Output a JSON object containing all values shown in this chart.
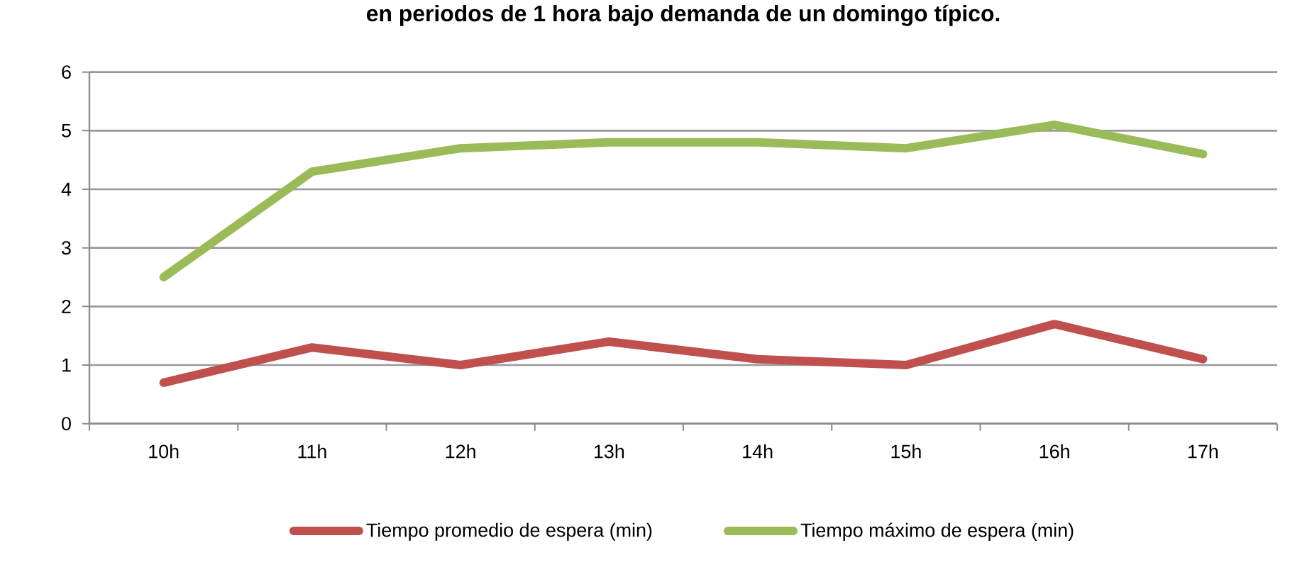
{
  "chart_data": {
    "type": "line",
    "title": "en periodos de 1 hora bajo demanda de un domingo típico.",
    "categories": [
      "10h",
      "11h",
      "12h",
      "13h",
      "14h",
      "15h",
      "16h",
      "17h"
    ],
    "series": [
      {
        "name": "Tiempo promedio de espera (min)",
        "color": "#c0504d",
        "values": [
          0.7,
          1.3,
          1.0,
          1.4,
          1.1,
          1.0,
          1.7,
          1.1
        ]
      },
      {
        "name": "Tiempo máximo de espera (min)",
        "color": "#9bbb59",
        "values": [
          2.5,
          4.3,
          4.7,
          4.8,
          4.8,
          4.7,
          5.1,
          4.6
        ]
      }
    ],
    "ylim": [
      0,
      6
    ],
    "yticks": [
      0,
      1,
      2,
      3,
      4,
      5,
      6
    ],
    "grid": "y",
    "legend": "bottom"
  }
}
